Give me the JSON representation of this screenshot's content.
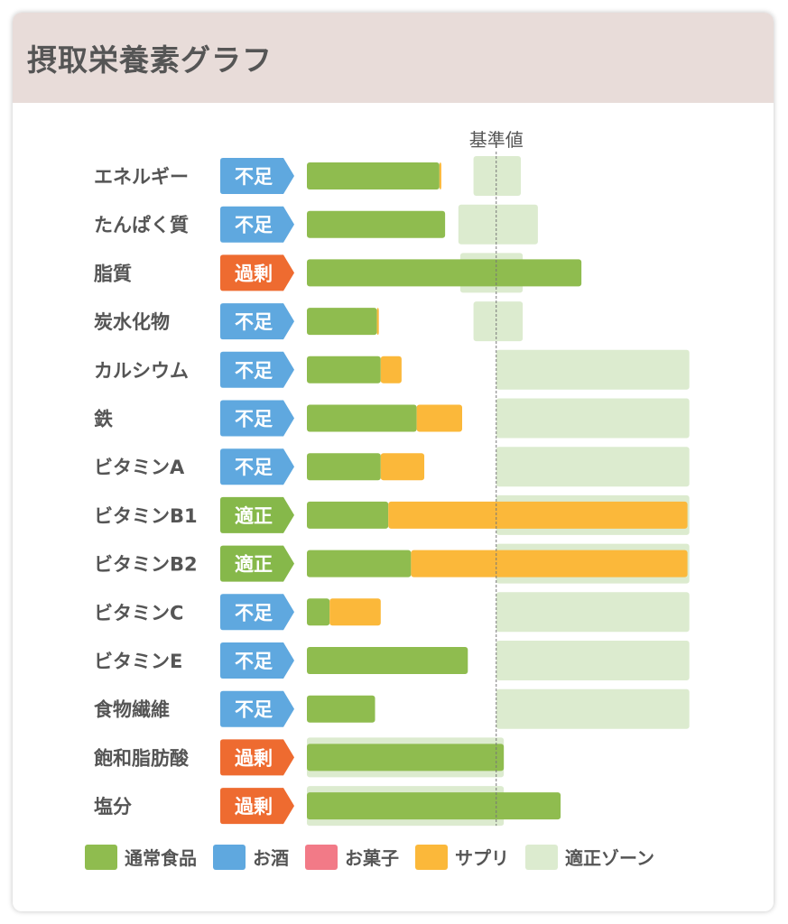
{
  "title": "摂取栄養素グラフ",
  "colors": {
    "food": "#8fbc4f",
    "alcohol": "#5fa8df",
    "sweets": "#f27a87",
    "supplement": "#fbb83a",
    "zone": "#dcebcf",
    "status_short": "#5fa8df",
    "status_excess": "#ee6b30",
    "status_ok": "#86b84a"
  },
  "legend": [
    {
      "key": "food",
      "label": "通常食品"
    },
    {
      "key": "alcohol",
      "label": "お酒"
    },
    {
      "key": "sweets",
      "label": "お菓子"
    },
    {
      "key": "supplement",
      "label": "サプリ"
    },
    {
      "key": "zone",
      "label": "適正ゾーン"
    }
  ],
  "chart_data": {
    "type": "bar",
    "orientation": "horizontal",
    "title": "摂取栄養素グラフ",
    "reference_label": "基準値",
    "reference_value": 100,
    "xlim": [
      0,
      205
    ],
    "grid": false,
    "legend_position": "bottom",
    "categories": [
      "エネルギー",
      "たんぱく質",
      "脂質",
      "炭水化物",
      "カルシウム",
      "鉄",
      "ビタミンA",
      "ビタミンB1",
      "ビタミンB2",
      "ビタミンC",
      "ビタミンE",
      "食物繊維",
      "飽和脂肪酸",
      "塩分"
    ],
    "status": [
      "不足",
      "不足",
      "過剰",
      "不足",
      "不足",
      "不足",
      "不足",
      "適正",
      "適正",
      "不足",
      "不足",
      "不足",
      "過剰",
      "過剰"
    ],
    "series": [
      {
        "name": "通常食品",
        "key": "food",
        "values": [
          70,
          73,
          145,
          37,
          39,
          58,
          39,
          43,
          55,
          12,
          85,
          36,
          104,
          134
        ]
      },
      {
        "name": "お酒",
        "key": "alcohol",
        "values": [
          0,
          0,
          0,
          0,
          0,
          0,
          0,
          0,
          0,
          0,
          0,
          0,
          0,
          0
        ]
      },
      {
        "name": "お菓子",
        "key": "sweets",
        "values": [
          0,
          0,
          0,
          0,
          0,
          0,
          0,
          0,
          0,
          0,
          0,
          0,
          0,
          0
        ]
      },
      {
        "name": "サプリ",
        "key": "supplement",
        "values": [
          1,
          0,
          0,
          1,
          11,
          24,
          23,
          158,
          146,
          27,
          0,
          0,
          0,
          0
        ]
      }
    ],
    "zones": [
      [
        88,
        113
      ],
      [
        80,
        122
      ],
      [
        81,
        114
      ],
      [
        88,
        114
      ],
      [
        100,
        202
      ],
      [
        100,
        202
      ],
      [
        100,
        202
      ],
      [
        100,
        202
      ],
      [
        100,
        202
      ],
      [
        100,
        202
      ],
      [
        100,
        202
      ],
      [
        100,
        202
      ],
      [
        0,
        104
      ],
      [
        0,
        104
      ]
    ]
  }
}
